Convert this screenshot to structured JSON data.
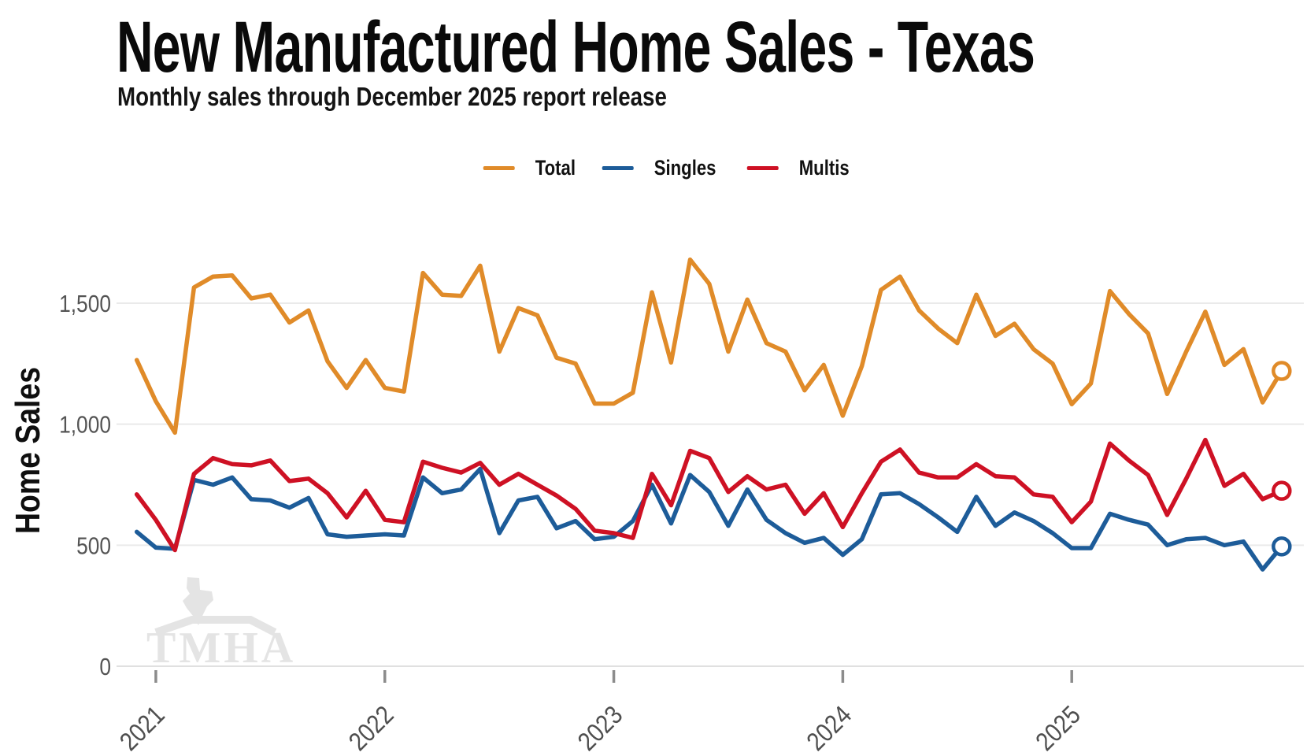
{
  "header": {
    "title": "New Manufactured Home Sales - Texas",
    "subtitle": "Monthly sales through December 2025 report release"
  },
  "legend": [
    {
      "label": "Total",
      "color": "#E08B29"
    },
    {
      "label": "Singles",
      "color": "#1D5C99"
    },
    {
      "label": "Multis",
      "color": "#CE1124"
    }
  ],
  "watermark": {
    "text": "TMHA"
  },
  "chart_data": {
    "type": "line",
    "title": "New Manufactured Home Sales - Texas",
    "subtitle": "Monthly sales through December 2025 report release",
    "ylabel": "Home Sales",
    "x_frequency": "monthly",
    "x_start": "2020-12",
    "x_end": "2025-12",
    "x_tick_labels": [
      "2021",
      "2022",
      "2023",
      "2024",
      "2025"
    ],
    "y_ticks": [
      0,
      500,
      1000,
      1500
    ],
    "y_tick_labels": [
      "0",
      "500",
      "1,000",
      "1,500"
    ],
    "ylim": [
      0,
      1750
    ],
    "grid": "horizontal",
    "legend_position": "top-center",
    "end_marker": "open-circle",
    "series": [
      {
        "name": "Total",
        "color": "#E08B29",
        "values": [
          1265,
          1095,
          965,
          1565,
          1610,
          1615,
          1520,
          1535,
          1420,
          1470,
          1260,
          1150,
          1265,
          1150,
          1135,
          1625,
          1535,
          1530,
          1655,
          1300,
          1480,
          1450,
          1275,
          1250,
          1085,
          1085,
          1130,
          1545,
          1255,
          1680,
          1580,
          1300,
          1515,
          1335,
          1300,
          1140,
          1245,
          1035,
          1240,
          1555,
          1610,
          1470,
          1395,
          1335,
          1535,
          1365,
          1415,
          1310,
          1250,
          1083,
          1168,
          1550,
          1455,
          1375,
          1125,
          1300,
          1465,
          1245,
          1310,
          1090,
          1220
        ]
      },
      {
        "name": "Singles",
        "color": "#1D5C99",
        "values": [
          555,
          490,
          485,
          770,
          750,
          780,
          690,
          685,
          655,
          695,
          545,
          535,
          540,
          545,
          540,
          780,
          715,
          730,
          815,
          550,
          685,
          700,
          570,
          600,
          525,
          535,
          600,
          750,
          590,
          790,
          720,
          580,
          730,
          605,
          550,
          510,
          530,
          460,
          525,
          710,
          715,
          670,
          615,
          555,
          700,
          580,
          635,
          600,
          550,
          488,
          488,
          630,
          605,
          585,
          500,
          525,
          530,
          500,
          515,
          400,
          495
        ]
      },
      {
        "name": "Multis",
        "color": "#CE1124",
        "values": [
          710,
          605,
          480,
          795,
          860,
          835,
          830,
          850,
          765,
          775,
          715,
          615,
          725,
          605,
          595,
          845,
          820,
          800,
          840,
          750,
          795,
          750,
          705,
          650,
          560,
          550,
          530,
          795,
          665,
          890,
          860,
          720,
          785,
          730,
          750,
          630,
          715,
          575,
          715,
          845,
          895,
          800,
          780,
          780,
          835,
          785,
          780,
          710,
          700,
          595,
          680,
          920,
          850,
          790,
          625,
          775,
          935,
          745,
          795,
          690,
          725
        ]
      }
    ]
  }
}
